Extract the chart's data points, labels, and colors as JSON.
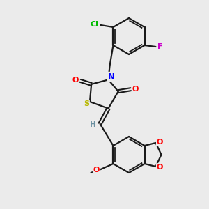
{
  "background_color": "#ebebeb",
  "bond_color": "#1a1a1a",
  "atom_colors": {
    "N": "#0000ff",
    "O": "#ff0000",
    "S": "#b8b800",
    "Cl": "#00bb00",
    "F": "#cc00cc",
    "H": "#6a8fa0",
    "C": "#1a1a1a"
  },
  "figsize": [
    3.0,
    3.0
  ],
  "dpi": 100
}
